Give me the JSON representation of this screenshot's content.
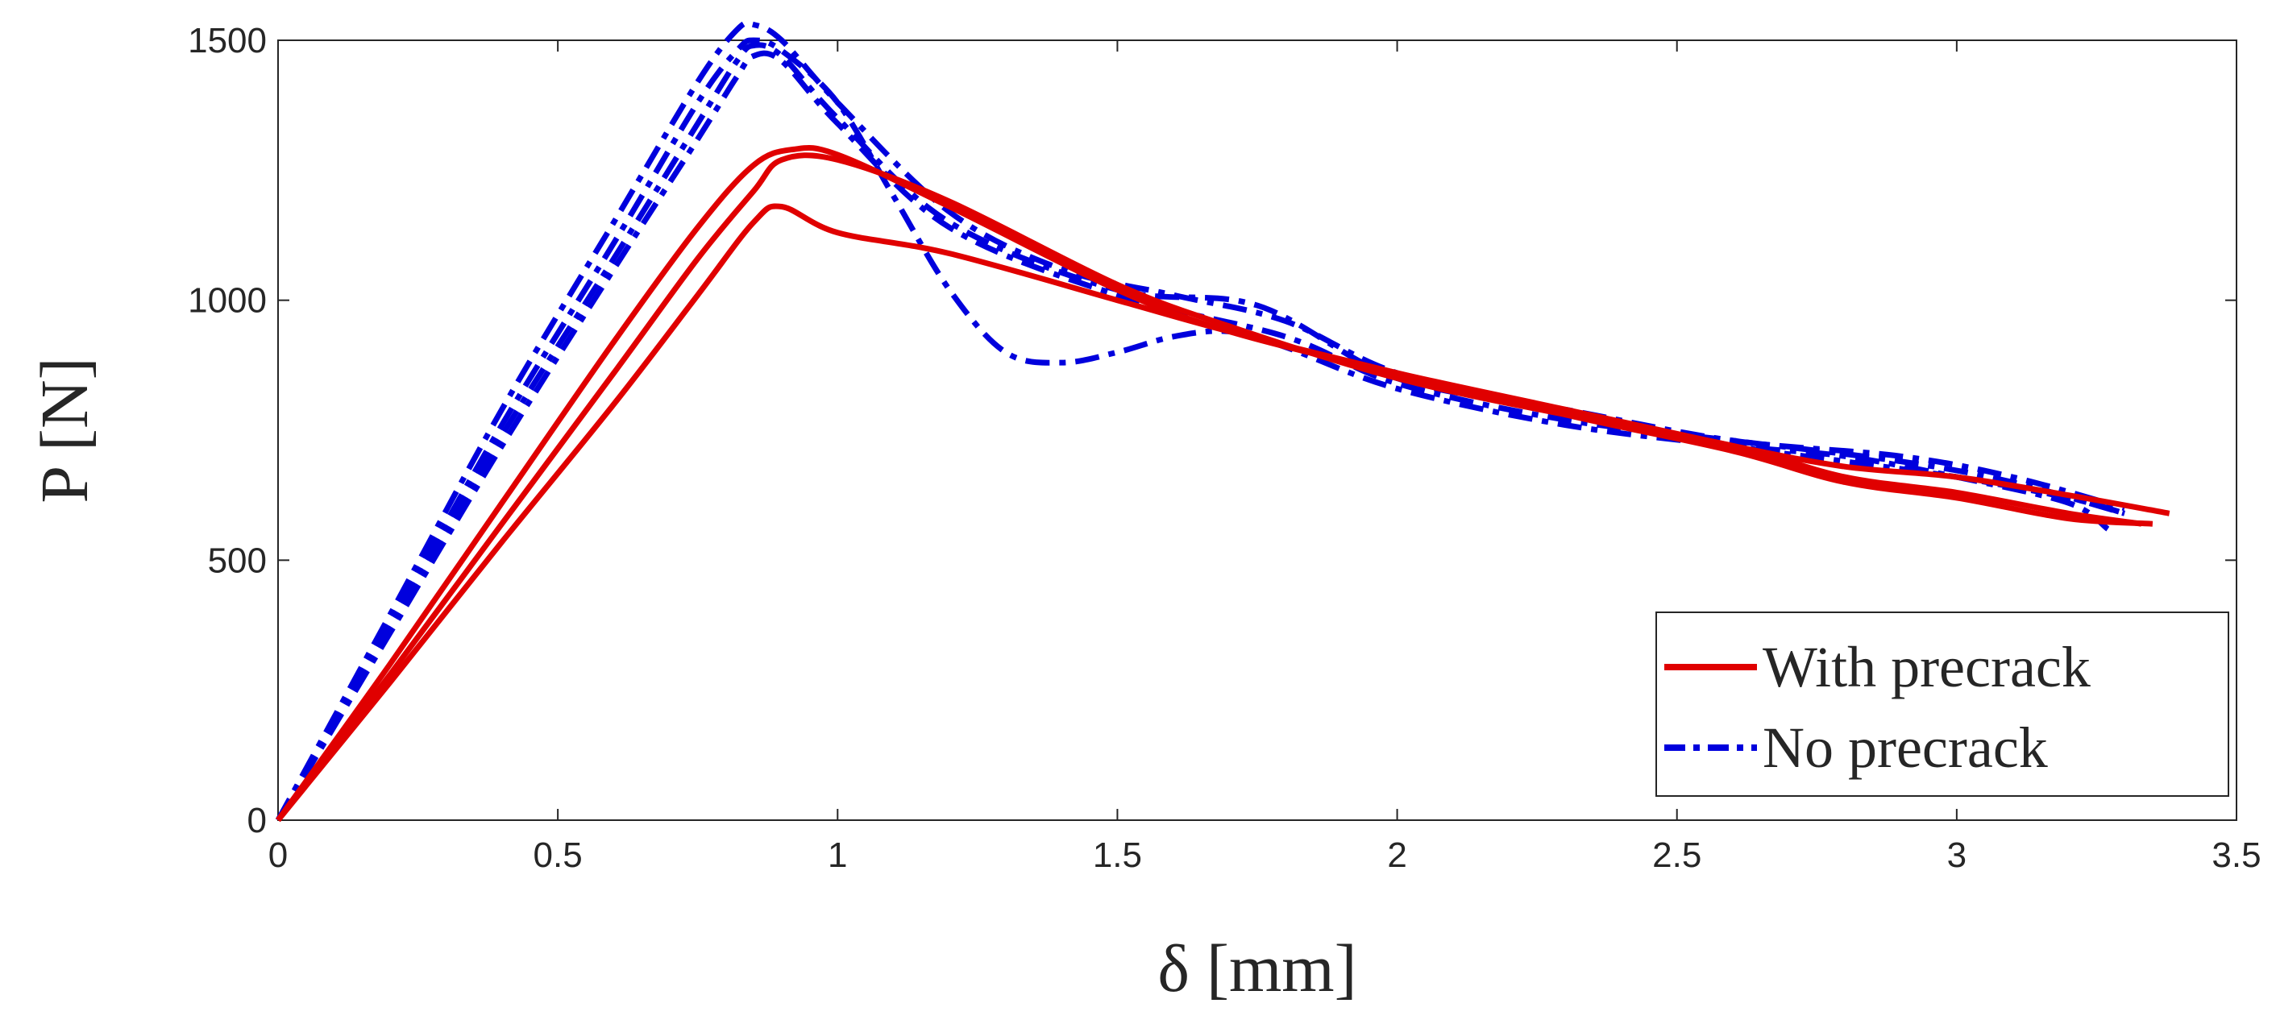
{
  "chart_data": {
    "type": "line",
    "xlabel": "δ [mm]",
    "ylabel": "P [N]",
    "xlim": [
      0,
      3.5
    ],
    "ylim": [
      0,
      1500
    ],
    "xticks": [
      "0",
      "0.5",
      "1",
      "1.5",
      "2",
      "2.5",
      "3",
      "3.5"
    ],
    "yticks": [
      "0",
      "500",
      "1000",
      "1500"
    ],
    "grid": false,
    "legend": {
      "placement": "bottom-right",
      "entries": [
        {
          "label": "With precrack",
          "color": "#e00000",
          "style": "solid"
        },
        {
          "label": "No precrack",
          "color": "#0000dd",
          "style": "dashdot"
        }
      ]
    },
    "series": [
      {
        "name": "With precrack",
        "color": "#e00000",
        "style": "solid",
        "x": [
          0,
          0.2,
          0.4,
          0.6,
          0.75,
          0.85,
          0.92,
          1.0,
          1.2,
          1.5,
          1.7,
          2.0,
          2.3,
          2.6,
          2.8,
          3.0,
          3.2,
          3.38
        ],
        "y": [
          0,
          300,
          610,
          920,
          1140,
          1260,
          1290,
          1280,
          1180,
          1020,
          940,
          860,
          790,
          720,
          680,
          660,
          625,
          590
        ]
      },
      {
        "name": "With precrack",
        "color": "#e00000",
        "style": "solid",
        "x": [
          0,
          0.2,
          0.4,
          0.6,
          0.75,
          0.85,
          0.9,
          1.0,
          1.2,
          1.5,
          1.7,
          2.0,
          2.3,
          2.6,
          2.8,
          3.0,
          3.2,
          3.33
        ],
        "y": [
          0,
          280,
          570,
          860,
          1080,
          1210,
          1270,
          1270,
          1190,
          1030,
          950,
          850,
          780,
          720,
          660,
          630,
          590,
          570
        ]
      },
      {
        "name": "With precrack",
        "color": "#e00000",
        "style": "solid",
        "x": [
          0,
          0.2,
          0.4,
          0.6,
          0.75,
          0.85,
          0.9,
          1.0,
          1.2,
          1.5,
          1.7,
          2.0,
          2.3,
          2.6,
          2.8,
          3.0,
          3.2,
          3.35
        ],
        "y": [
          0,
          265,
          535,
          800,
          1010,
          1150,
          1180,
          1130,
          1090,
          1000,
          940,
          860,
          780,
          710,
          650,
          620,
          580,
          570
        ]
      },
      {
        "name": "No precrack",
        "color": "#0000dd",
        "style": "dashdot",
        "x": [
          0,
          0.2,
          0.4,
          0.6,
          0.75,
          0.82,
          0.85,
          0.9,
          1.0,
          1.2,
          1.4,
          1.6,
          1.8,
          2.0,
          2.3,
          2.6,
          2.8,
          3.0,
          3.2,
          3.3
        ],
        "y": [
          0,
          395,
          790,
          1150,
          1420,
          1520,
          1530,
          1500,
          1380,
          1170,
          1060,
          1010,
          960,
          860,
          780,
          720,
          690,
          660,
          620,
          590
        ]
      },
      {
        "name": "No precrack",
        "color": "#0000dd",
        "style": "dashdot",
        "x": [
          0,
          0.2,
          0.4,
          0.6,
          0.75,
          0.82,
          0.85,
          0.9,
          1.0,
          1.1,
          1.2,
          1.3,
          1.4,
          1.5,
          1.6,
          1.7,
          1.8,
          2.0,
          2.3,
          2.6,
          2.8,
          3.0,
          3.2,
          3.27
        ],
        "y": [
          0,
          380,
          760,
          1110,
          1380,
          1480,
          1500,
          1480,
          1380,
          1200,
          1020,
          900,
          880,
          900,
          930,
          940,
          910,
          830,
          760,
          720,
          700,
          660,
          610,
          560
        ]
      },
      {
        "name": "No precrack",
        "color": "#0000dd",
        "style": "dashdot",
        "x": [
          0,
          0.2,
          0.4,
          0.6,
          0.75,
          0.82,
          0.85,
          0.9,
          1.0,
          1.2,
          1.5,
          1.75,
          2.0,
          2.3,
          2.6,
          2.9,
          3.1,
          3.3
        ],
        "y": [
          0,
          370,
          740,
          1080,
          1340,
          1460,
          1490,
          1470,
          1350,
          1150,
          1020,
          990,
          850,
          790,
          730,
          700,
          660,
          600
        ]
      },
      {
        "name": "No precrack",
        "color": "#0000dd",
        "style": "dashdot",
        "x": [
          0,
          0.2,
          0.4,
          0.6,
          0.75,
          0.82,
          0.85,
          0.9,
          1.0,
          1.2,
          1.5,
          1.8,
          2.0,
          2.3,
          2.6,
          2.9,
          3.1,
          3.3
        ],
        "y": [
          0,
          360,
          720,
          1060,
          1310,
          1430,
          1470,
          1460,
          1340,
          1140,
          1010,
          930,
          840,
          770,
          730,
          690,
          650,
          590
        ]
      }
    ]
  }
}
